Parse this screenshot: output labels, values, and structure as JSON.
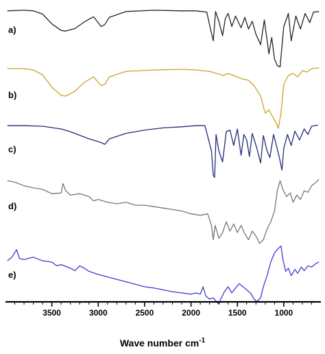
{
  "chart_data": {
    "type": "line",
    "title": "",
    "xlabel": "Wave number cm",
    "xlabel_superscript": "-1",
    "ylabel": "",
    "x_reversed": true,
    "xlim": [
      4000,
      600
    ],
    "x_ticks": [
      3500,
      3000,
      2500,
      2000,
      1500,
      1000
    ],
    "series": [
      {
        "name": "a)",
        "color": "#222222",
        "points": [
          [
            3980,
            0.96
          ],
          [
            3800,
            0.97
          ],
          [
            3700,
            0.96
          ],
          [
            3600,
            0.91
          ],
          [
            3500,
            0.76
          ],
          [
            3400,
            0.66
          ],
          [
            3350,
            0.65
          ],
          [
            3250,
            0.69
          ],
          [
            3150,
            0.79
          ],
          [
            3050,
            0.87
          ],
          [
            2970,
            0.72
          ],
          [
            2930,
            0.75
          ],
          [
            2880,
            0.86
          ],
          [
            2700,
            0.95
          ],
          [
            2400,
            0.97
          ],
          [
            2100,
            0.96
          ],
          [
            1950,
            0.96
          ],
          [
            1830,
            0.94
          ],
          [
            1790,
            0.68
          ],
          [
            1760,
            0.5
          ],
          [
            1735,
            0.95
          ],
          [
            1700,
            0.8
          ],
          [
            1660,
            0.58
          ],
          [
            1630,
            0.84
          ],
          [
            1600,
            0.92
          ],
          [
            1560,
            0.72
          ],
          [
            1520,
            0.88
          ],
          [
            1460,
            0.7
          ],
          [
            1420,
            0.86
          ],
          [
            1380,
            0.68
          ],
          [
            1340,
            0.8
          ],
          [
            1300,
            0.6
          ],
          [
            1250,
            0.44
          ],
          [
            1210,
            0.82
          ],
          [
            1160,
            0.3
          ],
          [
            1130,
            0.55
          ],
          [
            1100,
            0.22
          ],
          [
            1070,
            0.12
          ],
          [
            1040,
            0.1
          ],
          [
            1000,
            0.72
          ],
          [
            950,
            0.92
          ],
          [
            920,
            0.5
          ],
          [
            870,
            0.88
          ],
          [
            820,
            0.68
          ],
          [
            770,
            0.92
          ],
          [
            720,
            0.78
          ],
          [
            680,
            0.94
          ],
          [
            620,
            0.95
          ]
        ]
      },
      {
        "name": "b)",
        "color": "#c9a227",
        "points": [
          [
            3980,
            0.95
          ],
          [
            3800,
            0.95
          ],
          [
            3700,
            0.93
          ],
          [
            3600,
            0.86
          ],
          [
            3500,
            0.68
          ],
          [
            3400,
            0.56
          ],
          [
            3350,
            0.55
          ],
          [
            3250,
            0.62
          ],
          [
            3150,
            0.75
          ],
          [
            3050,
            0.83
          ],
          [
            2970,
            0.7
          ],
          [
            2930,
            0.72
          ],
          [
            2880,
            0.83
          ],
          [
            2700,
            0.91
          ],
          [
            2400,
            0.93
          ],
          [
            2100,
            0.94
          ],
          [
            1950,
            0.93
          ],
          [
            1800,
            0.91
          ],
          [
            1650,
            0.85
          ],
          [
            1600,
            0.88
          ],
          [
            1450,
            0.8
          ],
          [
            1380,
            0.78
          ],
          [
            1320,
            0.7
          ],
          [
            1250,
            0.55
          ],
          [
            1200,
            0.3
          ],
          [
            1160,
            0.35
          ],
          [
            1120,
            0.25
          ],
          [
            1080,
            0.15
          ],
          [
            1060,
            0.08
          ],
          [
            1030,
            0.3
          ],
          [
            1000,
            0.72
          ],
          [
            950,
            0.85
          ],
          [
            900,
            0.88
          ],
          [
            850,
            0.83
          ],
          [
            800,
            0.92
          ],
          [
            750,
            0.9
          ],
          [
            700,
            0.95
          ],
          [
            620,
            0.96
          ]
        ]
      },
      {
        "name": "c)",
        "color": "#1f2a7a",
        "points": [
          [
            3980,
            0.96
          ],
          [
            3800,
            0.96
          ],
          [
            3600,
            0.95
          ],
          [
            3400,
            0.9
          ],
          [
            3300,
            0.85
          ],
          [
            3100,
            0.72
          ],
          [
            2980,
            0.66
          ],
          [
            2930,
            0.62
          ],
          [
            2880,
            0.72
          ],
          [
            2700,
            0.82
          ],
          [
            2500,
            0.88
          ],
          [
            2300,
            0.92
          ],
          [
            2100,
            0.94
          ],
          [
            1950,
            0.96
          ],
          [
            1850,
            0.96
          ],
          [
            1780,
            0.5
          ],
          [
            1760,
            0.05
          ],
          [
            1745,
            0.02
          ],
          [
            1730,
            0.8
          ],
          [
            1700,
            0.5
          ],
          [
            1660,
            0.3
          ],
          [
            1620,
            0.85
          ],
          [
            1580,
            0.88
          ],
          [
            1540,
            0.6
          ],
          [
            1500,
            0.9
          ],
          [
            1460,
            0.42
          ],
          [
            1430,
            0.8
          ],
          [
            1400,
            0.7
          ],
          [
            1370,
            0.4
          ],
          [
            1340,
            0.82
          ],
          [
            1290,
            0.55
          ],
          [
            1250,
            0.28
          ],
          [
            1220,
            0.78
          ],
          [
            1180,
            0.5
          ],
          [
            1150,
            0.38
          ],
          [
            1110,
            0.8
          ],
          [
            1080,
            0.6
          ],
          [
            1050,
            0.4
          ],
          [
            1020,
            0.15
          ],
          [
            1000,
            0.55
          ],
          [
            960,
            0.8
          ],
          [
            920,
            0.6
          ],
          [
            880,
            0.86
          ],
          [
            830,
            0.7
          ],
          [
            780,
            0.9
          ],
          [
            740,
            0.8
          ],
          [
            700,
            0.95
          ],
          [
            630,
            0.97
          ]
        ]
      },
      {
        "name": "d)",
        "color": "#777777",
        "points": [
          [
            3980,
            0.92
          ],
          [
            3900,
            0.9
          ],
          [
            3800,
            0.85
          ],
          [
            3700,
            0.82
          ],
          [
            3600,
            0.8
          ],
          [
            3500,
            0.74
          ],
          [
            3400,
            0.75
          ],
          [
            3380,
            0.88
          ],
          [
            3350,
            0.78
          ],
          [
            3300,
            0.72
          ],
          [
            3200,
            0.74
          ],
          [
            3100,
            0.7
          ],
          [
            3050,
            0.64
          ],
          [
            3000,
            0.66
          ],
          [
            2900,
            0.62
          ],
          [
            2800,
            0.6
          ],
          [
            2700,
            0.62
          ],
          [
            2600,
            0.58
          ],
          [
            2500,
            0.58
          ],
          [
            2400,
            0.56
          ],
          [
            2300,
            0.54
          ],
          [
            2200,
            0.52
          ],
          [
            2100,
            0.5
          ],
          [
            2000,
            0.46
          ],
          [
            1900,
            0.44
          ],
          [
            1820,
            0.46
          ],
          [
            1780,
            0.3
          ],
          [
            1760,
            0.1
          ],
          [
            1740,
            0.3
          ],
          [
            1700,
            0.12
          ],
          [
            1660,
            0.2
          ],
          [
            1620,
            0.35
          ],
          [
            1580,
            0.22
          ],
          [
            1540,
            0.32
          ],
          [
            1500,
            0.2
          ],
          [
            1460,
            0.3
          ],
          [
            1420,
            0.18
          ],
          [
            1380,
            0.1
          ],
          [
            1340,
            0.22
          ],
          [
            1300,
            0.15
          ],
          [
            1260,
            0.05
          ],
          [
            1220,
            0.1
          ],
          [
            1180,
            0.25
          ],
          [
            1140,
            0.35
          ],
          [
            1100,
            0.5
          ],
          [
            1070,
            0.78
          ],
          [
            1040,
            0.92
          ],
          [
            1010,
            0.8
          ],
          [
            970,
            0.7
          ],
          [
            930,
            0.75
          ],
          [
            900,
            0.62
          ],
          [
            860,
            0.72
          ],
          [
            820,
            0.66
          ],
          [
            780,
            0.78
          ],
          [
            740,
            0.76
          ],
          [
            700,
            0.85
          ],
          [
            650,
            0.9
          ],
          [
            620,
            0.94
          ]
        ]
      },
      {
        "name": "e)",
        "color": "#3a3ad6",
        "points": [
          [
            3980,
            0.72
          ],
          [
            3930,
            0.78
          ],
          [
            3880,
            0.9
          ],
          [
            3850,
            0.76
          ],
          [
            3800,
            0.74
          ],
          [
            3700,
            0.78
          ],
          [
            3600,
            0.72
          ],
          [
            3500,
            0.7
          ],
          [
            3450,
            0.64
          ],
          [
            3400,
            0.66
          ],
          [
            3300,
            0.6
          ],
          [
            3250,
            0.56
          ],
          [
            3200,
            0.64
          ],
          [
            3150,
            0.6
          ],
          [
            3100,
            0.55
          ],
          [
            3000,
            0.5
          ],
          [
            2900,
            0.46
          ],
          [
            2800,
            0.42
          ],
          [
            2700,
            0.38
          ],
          [
            2600,
            0.34
          ],
          [
            2500,
            0.3
          ],
          [
            2400,
            0.28
          ],
          [
            2300,
            0.25
          ],
          [
            2200,
            0.22
          ],
          [
            2100,
            0.2
          ],
          [
            2000,
            0.18
          ],
          [
            1950,
            0.2
          ],
          [
            1900,
            0.18
          ],
          [
            1870,
            0.3
          ],
          [
            1840,
            0.15
          ],
          [
            1800,
            0.1
          ],
          [
            1760,
            0.12
          ],
          [
            1720,
            0.05
          ],
          [
            1700,
            0.02
          ],
          [
            1680,
            0.1
          ],
          [
            1640,
            0.22
          ],
          [
            1600,
            0.3
          ],
          [
            1560,
            0.2
          ],
          [
            1520,
            0.28
          ],
          [
            1480,
            0.35
          ],
          [
            1440,
            0.3
          ],
          [
            1400,
            0.25
          ],
          [
            1360,
            0.2
          ],
          [
            1320,
            0.1
          ],
          [
            1290,
            0.06
          ],
          [
            1250,
            0.12
          ],
          [
            1220,
            0.3
          ],
          [
            1180,
            0.48
          ],
          [
            1140,
            0.7
          ],
          [
            1100,
            0.85
          ],
          [
            1060,
            0.92
          ],
          [
            1030,
            0.96
          ],
          [
            1010,
            0.75
          ],
          [
            980,
            0.55
          ],
          [
            950,
            0.6
          ],
          [
            920,
            0.48
          ],
          [
            880,
            0.58
          ],
          [
            850,
            0.52
          ],
          [
            810,
            0.62
          ],
          [
            780,
            0.56
          ],
          [
            740,
            0.64
          ],
          [
            700,
            0.62
          ],
          [
            650,
            0.68
          ],
          [
            620,
            0.7
          ]
        ]
      }
    ]
  }
}
